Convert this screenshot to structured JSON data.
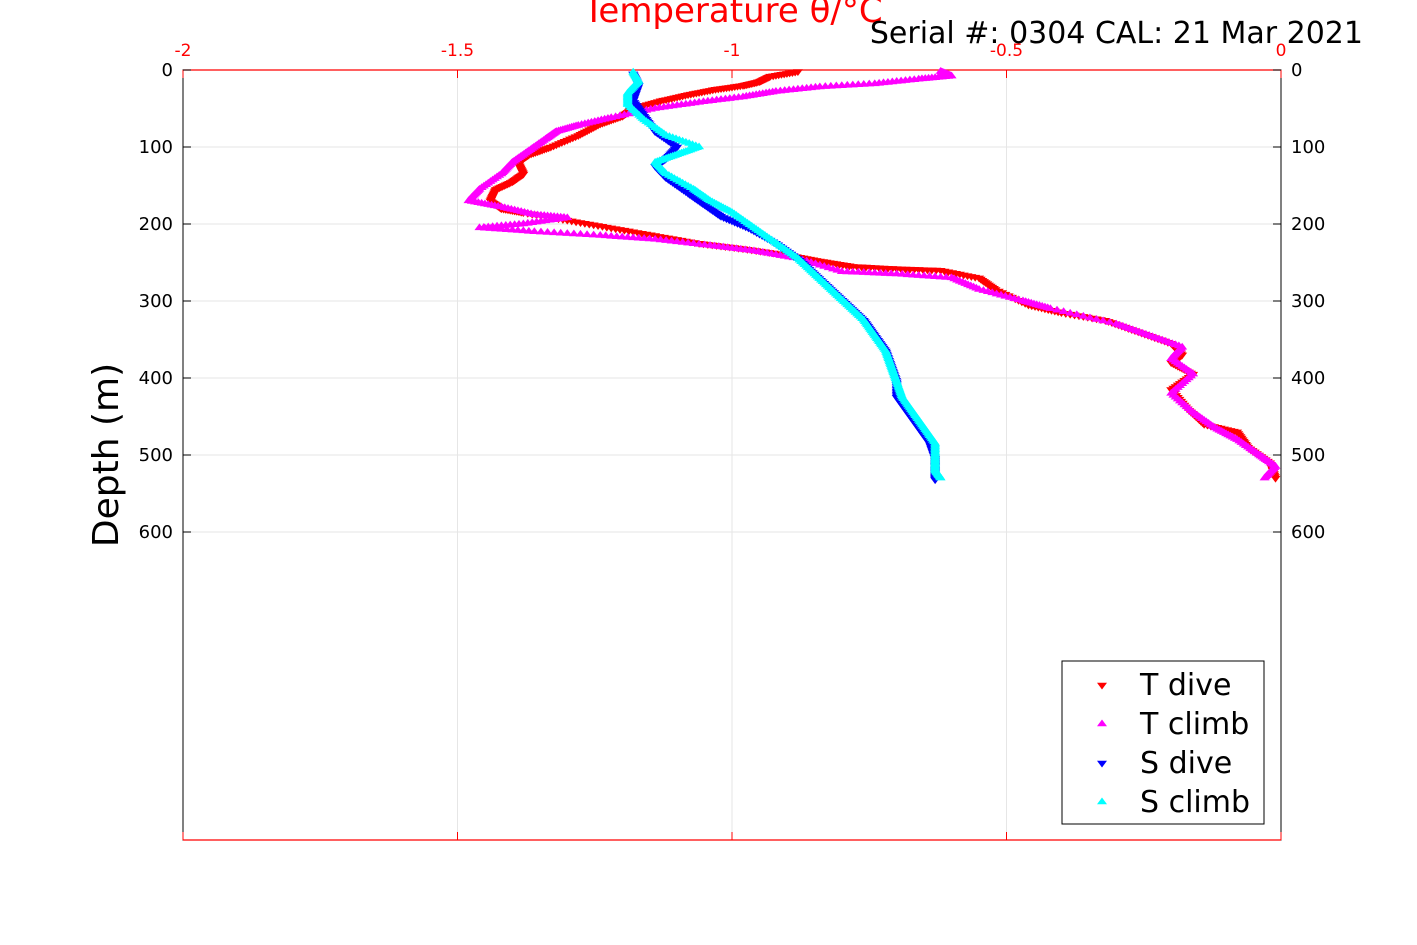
{
  "chart_data": {
    "type": "scatter",
    "title": "Temperature θ/°C",
    "subtitle": "Serial #: 0304  CAL: 21 Mar 2021",
    "xlabel": "",
    "ylabel": "Depth (m)",
    "xlim": [
      -2,
      0
    ],
    "ylim": [
      0,
      1000
    ],
    "y_reversed": true,
    "x_axis_position": "top",
    "x_ticks": [
      -2,
      -1.5,
      -1,
      -0.5,
      0
    ],
    "x_tick_labels": [
      "-2",
      "-1.5",
      "-1",
      "-0.5",
      "0"
    ],
    "y_ticks": [
      0,
      100,
      200,
      300,
      400,
      500,
      600
    ],
    "y_tick_labels": [
      "0",
      "100",
      "200",
      "300",
      "400",
      "500",
      "600"
    ],
    "grid": true,
    "legend_position": "bottom-right",
    "colors": {
      "t_dive": "#ff0000",
      "t_climb": "#ff00ff",
      "s_dive": "#0000ff",
      "s_climb": "#00ffff",
      "x_axis": "#ff0000",
      "title": "#ff0000"
    },
    "series": [
      {
        "name": "T dive",
        "marker": "triangle-down",
        "color": "#ff0000",
        "points": [
          [
            -0.88,
            2
          ],
          [
            -0.93,
            8
          ],
          [
            -0.95,
            15
          ],
          [
            -0.98,
            20
          ],
          [
            -1.03,
            25
          ],
          [
            -1.08,
            32
          ],
          [
            -1.13,
            40
          ],
          [
            -1.18,
            50
          ],
          [
            -1.2,
            60
          ],
          [
            -1.24,
            70
          ],
          [
            -1.28,
            85
          ],
          [
            -1.33,
            100
          ],
          [
            -1.37,
            110
          ],
          [
            -1.39,
            120
          ],
          [
            -1.38,
            135
          ],
          [
            -1.4,
            145
          ],
          [
            -1.43,
            155
          ],
          [
            -1.44,
            170
          ],
          [
            -1.42,
            180
          ],
          [
            -1.38,
            185
          ],
          [
            -1.3,
            195
          ],
          [
            -1.22,
            205
          ],
          [
            -1.14,
            215
          ],
          [
            -1.06,
            225
          ],
          [
            -0.98,
            232
          ],
          [
            -0.9,
            240
          ],
          [
            -0.84,
            248
          ],
          [
            -0.78,
            255
          ],
          [
            -0.7,
            258
          ],
          [
            -0.62,
            260
          ],
          [
            -0.55,
            270
          ],
          [
            -0.52,
            285
          ],
          [
            -0.46,
            305
          ],
          [
            -0.4,
            315
          ],
          [
            -0.32,
            325
          ],
          [
            -0.26,
            340
          ],
          [
            -0.2,
            355
          ],
          [
            -0.18,
            370
          ],
          [
            -0.2,
            380
          ],
          [
            -0.16,
            395
          ],
          [
            -0.2,
            415
          ],
          [
            -0.17,
            440
          ],
          [
            -0.14,
            460
          ],
          [
            -0.08,
            470
          ],
          [
            -0.06,
            490
          ],
          [
            -0.02,
            510
          ],
          [
            -0.01,
            530
          ]
        ]
      },
      {
        "name": "T climb",
        "marker": "triangle-up",
        "color": "#ff00ff",
        "points": [
          [
            -0.62,
            2
          ],
          [
            -0.6,
            8
          ],
          [
            -0.66,
            12
          ],
          [
            -0.74,
            18
          ],
          [
            -0.84,
            22
          ],
          [
            -0.92,
            28
          ],
          [
            -0.98,
            35
          ],
          [
            -1.06,
            42
          ],
          [
            -1.14,
            50
          ],
          [
            -1.22,
            62
          ],
          [
            -1.28,
            72
          ],
          [
            -1.32,
            80
          ],
          [
            -1.34,
            90
          ],
          [
            -1.37,
            105
          ],
          [
            -1.4,
            120
          ],
          [
            -1.42,
            135
          ],
          [
            -1.46,
            155
          ],
          [
            -1.48,
            170
          ],
          [
            -1.42,
            178
          ],
          [
            -1.36,
            188
          ],
          [
            -1.3,
            192
          ],
          [
            -1.38,
            200
          ],
          [
            -1.46,
            205
          ],
          [
            -1.36,
            210
          ],
          [
            -1.24,
            215
          ],
          [
            -1.14,
            220
          ],
          [
            -1.04,
            228
          ],
          [
            -0.96,
            235
          ],
          [
            -0.88,
            245
          ],
          [
            -0.8,
            262
          ],
          [
            -0.7,
            265
          ],
          [
            -0.6,
            270
          ],
          [
            -0.55,
            285
          ],
          [
            -0.47,
            300
          ],
          [
            -0.42,
            310
          ],
          [
            -0.3,
            330
          ],
          [
            -0.24,
            345
          ],
          [
            -0.18,
            360
          ],
          [
            -0.2,
            375
          ],
          [
            -0.16,
            395
          ],
          [
            -0.2,
            420
          ],
          [
            -0.16,
            445
          ],
          [
            -0.12,
            465
          ],
          [
            -0.08,
            480
          ],
          [
            -0.04,
            500
          ],
          [
            -0.01,
            515
          ],
          [
            -0.03,
            530
          ]
        ]
      },
      {
        "name": "S dive",
        "marker": "triangle-down",
        "color": "#0000ff",
        "points": [
          [
            -1.18,
            5
          ],
          [
            -1.17,
            20
          ],
          [
            -1.18,
            40
          ],
          [
            -1.16,
            60
          ],
          [
            -1.14,
            80
          ],
          [
            -1.1,
            100
          ],
          [
            -1.12,
            115
          ],
          [
            -1.14,
            125
          ],
          [
            -1.12,
            140
          ],
          [
            -1.08,
            160
          ],
          [
            -1.05,
            175
          ],
          [
            -1.02,
            190
          ],
          [
            -0.97,
            205
          ],
          [
            -0.92,
            225
          ],
          [
            -0.88,
            245
          ],
          [
            -0.85,
            265
          ],
          [
            -0.82,
            285
          ],
          [
            -0.79,
            305
          ],
          [
            -0.76,
            325
          ],
          [
            -0.74,
            345
          ],
          [
            -0.72,
            365
          ],
          [
            -0.71,
            385
          ],
          [
            -0.7,
            405
          ],
          [
            -0.7,
            425
          ],
          [
            -0.68,
            445
          ],
          [
            -0.66,
            465
          ],
          [
            -0.64,
            485
          ],
          [
            -0.63,
            505
          ],
          [
            -0.63,
            520
          ],
          [
            -0.63,
            532
          ]
        ]
      },
      {
        "name": "S climb",
        "marker": "triangle-up",
        "color": "#00ffff",
        "points": [
          [
            -1.18,
            3
          ],
          [
            -1.17,
            15
          ],
          [
            -1.19,
            30
          ],
          [
            -1.19,
            45
          ],
          [
            -1.16,
            65
          ],
          [
            -1.12,
            85
          ],
          [
            -1.06,
            100
          ],
          [
            -1.1,
            110
          ],
          [
            -1.14,
            120
          ],
          [
            -1.12,
            135
          ],
          [
            -1.07,
            155
          ],
          [
            -1.04,
            170
          ],
          [
            -1.0,
            185
          ],
          [
            -0.96,
            205
          ],
          [
            -0.92,
            225
          ],
          [
            -0.88,
            245
          ],
          [
            -0.85,
            265
          ],
          [
            -0.82,
            285
          ],
          [
            -0.79,
            305
          ],
          [
            -0.76,
            325
          ],
          [
            -0.74,
            345
          ],
          [
            -0.72,
            365
          ],
          [
            -0.71,
            385
          ],
          [
            -0.7,
            405
          ],
          [
            -0.69,
            425
          ],
          [
            -0.67,
            445
          ],
          [
            -0.65,
            465
          ],
          [
            -0.63,
            485
          ],
          [
            -0.63,
            505
          ],
          [
            -0.63,
            520
          ],
          [
            -0.62,
            530
          ]
        ]
      }
    ]
  }
}
